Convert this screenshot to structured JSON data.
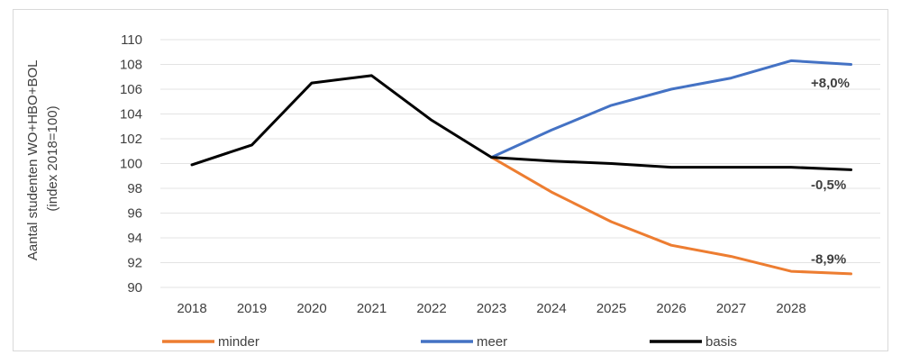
{
  "chart_data": {
    "type": "line",
    "ylabel_lines": [
      "Aantal studenten WO+HBO+BOL",
      "(index 2018=100)"
    ],
    "x": [
      "2018",
      "2019",
      "2020",
      "2021",
      "2022",
      "2023",
      "2024",
      "2025",
      "2026",
      "2027",
      "2028",
      ""
    ],
    "ylim": [
      90,
      110
    ],
    "yticks": [
      90,
      92,
      94,
      96,
      98,
      100,
      102,
      104,
      106,
      108,
      110
    ],
    "grid": "horizontal",
    "legend_position": "bottom",
    "series": [
      {
        "name": "minder",
        "color": "#ed7d31",
        "values": [
          null,
          null,
          null,
          null,
          null,
          100.5,
          97.7,
          95.3,
          93.4,
          92.5,
          91.3,
          91.1
        ]
      },
      {
        "name": "meer",
        "color": "#4472c4",
        "values": [
          null,
          null,
          null,
          null,
          null,
          100.5,
          102.7,
          104.7,
          106.0,
          106.9,
          108.3,
          108.0
        ]
      },
      {
        "name": "basis",
        "color": "#000000",
        "values": [
          99.9,
          101.5,
          106.5,
          107.1,
          103.5,
          100.5,
          100.2,
          100.0,
          99.7,
          99.7,
          99.7,
          99.5
        ]
      }
    ],
    "annotations": [
      {
        "text": "+8,0%",
        "x": "2028",
        "y": 106.5,
        "series": "meer"
      },
      {
        "text": "-0,5%",
        "x": "2028",
        "y": 98.3,
        "series": "basis"
      },
      {
        "text": "-8,9%",
        "x": "2028",
        "y": 92.3,
        "series": "minder"
      }
    ]
  }
}
